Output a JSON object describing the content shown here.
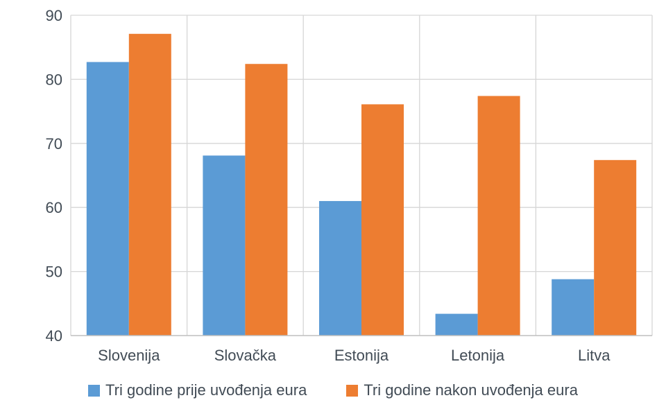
{
  "chart_data": {
    "type": "bar",
    "title": "",
    "xlabel": "",
    "ylabel": "",
    "categories": [
      "Slovenija",
      "Slovačka",
      "Estonija",
      "Letonija",
      "Litva"
    ],
    "series": [
      {
        "name": "Tri godine prije uvođenja eura",
        "color": "#5B9BD5",
        "values": [
          82.7,
          68.1,
          61.0,
          43.4,
          48.8
        ]
      },
      {
        "name": "Tri godine nakon uvođenja eura",
        "color": "#ED7D31",
        "values": [
          87.1,
          82.4,
          76.1,
          77.4,
          67.4
        ]
      }
    ],
    "ylim": [
      40,
      90
    ],
    "yticks": [
      40,
      50,
      60,
      70,
      80,
      90
    ],
    "grid": "horizontal gridlines every 10 plus vertical category separators",
    "legend_position": "bottom-center"
  },
  "colors": {
    "background": "#FFFFFF",
    "gridline": "#D6D6D6",
    "axis_line": "#BFBFBF",
    "text": "#414B55"
  }
}
